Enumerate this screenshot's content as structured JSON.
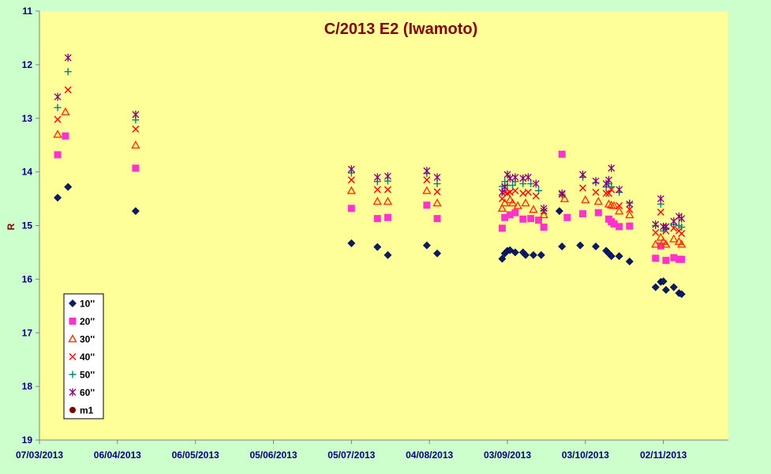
{
  "chart_data": {
    "type": "scatter",
    "title": "C/2013 E2 (Iwamoto)",
    "ylabel": "R",
    "xlabel": "",
    "x_type": "date",
    "xlim": [
      "2013-03-07",
      "2013-11-27"
    ],
    "x_ticks": [
      "07/03/2013",
      "06/04/2013",
      "06/05/2013",
      "05/06/2013",
      "05/07/2013",
      "04/08/2013",
      "03/09/2013",
      "03/10/2013",
      "02/11/2013"
    ],
    "ylim": [
      11,
      19
    ],
    "y_reversed": true,
    "y_ticks": [
      "11",
      "12",
      "13",
      "14",
      "15",
      "16",
      "17",
      "18",
      "19"
    ],
    "grid": false,
    "legend_position": "bottom-left",
    "colors": {
      "page_background": "#ccffcc",
      "plot_background": "#ffff99",
      "axis": "#808080",
      "title": "#800000",
      "tick_labels": "#000080"
    },
    "series": [
      {
        "name": "10''",
        "marker": "diamond",
        "color": "#0a1a6e",
        "points": [
          [
            "2013-03-14",
            14.48
          ],
          [
            "2013-03-18",
            14.28
          ],
          [
            "2013-04-13",
            14.73
          ],
          [
            "2013-07-05",
            15.33
          ],
          [
            "2013-07-15",
            15.4
          ],
          [
            "2013-07-19",
            15.55
          ],
          [
            "2013-08-03",
            15.37
          ],
          [
            "2013-08-07",
            15.52
          ],
          [
            "2013-09-01",
            15.62
          ],
          [
            "2013-09-02",
            15.52
          ],
          [
            "2013-09-03",
            15.47
          ],
          [
            "2013-09-04",
            15.46
          ],
          [
            "2013-09-06",
            15.5
          ],
          [
            "2013-09-09",
            15.5
          ],
          [
            "2013-09-10",
            15.55
          ],
          [
            "2013-09-13",
            15.55
          ],
          [
            "2013-09-16",
            15.55
          ],
          [
            "2013-09-23",
            14.73
          ],
          [
            "2013-09-24",
            15.39
          ],
          [
            "2013-10-01",
            15.37
          ],
          [
            "2013-10-07",
            15.39
          ],
          [
            "2013-10-11",
            15.47
          ],
          [
            "2013-10-12",
            15.52
          ],
          [
            "2013-10-13",
            15.57
          ],
          [
            "2013-10-16",
            15.57
          ],
          [
            "2013-10-20",
            15.67
          ],
          [
            "2013-10-30",
            16.15
          ],
          [
            "2013-11-01",
            16.05
          ],
          [
            "2013-11-02",
            16.04
          ],
          [
            "2013-11-03",
            16.2
          ],
          [
            "2013-11-06",
            16.15
          ],
          [
            "2013-11-08",
            16.26
          ],
          [
            "2013-11-09",
            16.28
          ]
        ]
      },
      {
        "name": "20''",
        "marker": "square",
        "color": "#ff33cc",
        "points": [
          [
            "2013-03-14",
            13.68
          ],
          [
            "2013-03-17",
            13.33
          ],
          [
            "2013-04-13",
            13.93
          ],
          [
            "2013-07-05",
            14.68
          ],
          [
            "2013-07-15",
            14.87
          ],
          [
            "2013-07-19",
            14.85
          ],
          [
            "2013-08-03",
            14.62
          ],
          [
            "2013-08-07",
            14.87
          ],
          [
            "2013-09-01",
            15.05
          ],
          [
            "2013-09-02",
            14.85
          ],
          [
            "2013-09-04",
            14.8
          ],
          [
            "2013-09-06",
            14.76
          ],
          [
            "2013-09-09",
            14.88
          ],
          [
            "2013-09-12",
            14.87
          ],
          [
            "2013-09-15",
            14.9
          ],
          [
            "2013-09-17",
            15.03
          ],
          [
            "2013-09-24",
            13.67
          ],
          [
            "2013-09-26",
            14.85
          ],
          [
            "2013-10-02",
            14.78
          ],
          [
            "2013-10-08",
            14.76
          ],
          [
            "2013-10-12",
            14.88
          ],
          [
            "2013-10-13",
            14.93
          ],
          [
            "2013-10-14",
            14.97
          ],
          [
            "2013-10-16",
            15.02
          ],
          [
            "2013-10-20",
            15.01
          ],
          [
            "2013-10-30",
            15.61
          ],
          [
            "2013-11-01",
            15.38
          ],
          [
            "2013-11-03",
            15.65
          ],
          [
            "2013-11-06",
            15.6
          ],
          [
            "2013-11-08",
            15.63
          ],
          [
            "2013-11-09",
            15.63
          ]
        ]
      },
      {
        "name": "30''",
        "marker": "triangle",
        "color": "#ff3300",
        "points": [
          [
            "2013-03-14",
            13.3
          ],
          [
            "2013-03-17",
            12.88
          ],
          [
            "2013-04-13",
            13.5
          ],
          [
            "2013-07-05",
            14.35
          ],
          [
            "2013-07-15",
            14.55
          ],
          [
            "2013-07-19",
            14.55
          ],
          [
            "2013-08-03",
            14.35
          ],
          [
            "2013-08-07",
            14.58
          ],
          [
            "2013-09-01",
            14.68
          ],
          [
            "2013-09-02",
            14.58
          ],
          [
            "2013-09-04",
            14.52
          ],
          [
            "2013-09-05",
            14.58
          ],
          [
            "2013-09-07",
            14.63
          ],
          [
            "2013-09-10",
            14.58
          ],
          [
            "2013-09-13",
            14.7
          ],
          [
            "2013-09-17",
            14.8
          ],
          [
            "2013-09-25",
            14.5
          ],
          [
            "2013-10-03",
            14.52
          ],
          [
            "2013-10-08",
            14.55
          ],
          [
            "2013-10-12",
            14.6
          ],
          [
            "2013-10-13",
            14.62
          ],
          [
            "2013-10-14",
            14.63
          ],
          [
            "2013-10-16",
            14.73
          ],
          [
            "2013-10-20",
            14.8
          ],
          [
            "2013-10-30",
            15.35
          ],
          [
            "2013-11-01",
            15.22
          ],
          [
            "2013-11-02",
            15.3
          ],
          [
            "2013-11-03",
            15.35
          ],
          [
            "2013-11-06",
            15.25
          ],
          [
            "2013-11-08",
            15.3
          ],
          [
            "2013-11-09",
            15.35
          ]
        ]
      },
      {
        "name": "40''",
        "marker": "x",
        "color": "#ff0000",
        "points": [
          [
            "2013-03-14",
            13.02
          ],
          [
            "2013-03-18",
            12.47
          ],
          [
            "2013-04-13",
            13.2
          ],
          [
            "2013-07-05",
            14.15
          ],
          [
            "2013-07-15",
            14.33
          ],
          [
            "2013-07-19",
            14.33
          ],
          [
            "2013-08-03",
            14.15
          ],
          [
            "2013-08-07",
            14.37
          ],
          [
            "2013-09-01",
            14.5
          ],
          [
            "2013-09-02",
            14.38
          ],
          [
            "2013-09-03",
            14.4
          ],
          [
            "2013-09-04",
            14.38
          ],
          [
            "2013-09-06",
            14.35
          ],
          [
            "2013-09-09",
            14.4
          ],
          [
            "2013-09-11",
            14.38
          ],
          [
            "2013-09-14",
            14.45
          ],
          [
            "2013-09-17",
            14.73
          ],
          [
            "2013-09-24",
            14.42
          ],
          [
            "2013-10-02",
            14.3
          ],
          [
            "2013-10-07",
            14.38
          ],
          [
            "2013-10-11",
            14.4
          ],
          [
            "2013-10-12",
            14.4
          ],
          [
            "2013-10-13",
            14.33
          ],
          [
            "2013-10-16",
            14.63
          ],
          [
            "2013-10-20",
            14.7
          ],
          [
            "2013-10-30",
            15.13
          ],
          [
            "2013-11-01",
            14.75
          ],
          [
            "2013-11-03",
            15.1
          ],
          [
            "2013-11-06",
            15.05
          ],
          [
            "2013-11-08",
            15.1
          ],
          [
            "2013-11-09",
            15.15
          ]
        ]
      },
      {
        "name": "50''",
        "marker": "plus",
        "color": "#008080",
        "points": [
          [
            "2013-03-14",
            12.8
          ],
          [
            "2013-03-18",
            12.13
          ],
          [
            "2013-04-13",
            13.03
          ],
          [
            "2013-07-05",
            14.02
          ],
          [
            "2013-07-15",
            14.18
          ],
          [
            "2013-07-19",
            14.17
          ],
          [
            "2013-08-03",
            14.03
          ],
          [
            "2013-08-07",
            14.22
          ],
          [
            "2013-09-01",
            14.27
          ],
          [
            "2013-09-02",
            14.18
          ],
          [
            "2013-09-03",
            14.25
          ],
          [
            "2013-09-05",
            14.25
          ],
          [
            "2013-09-06",
            14.18
          ],
          [
            "2013-09-09",
            14.22
          ],
          [
            "2013-09-12",
            14.22
          ],
          [
            "2013-09-15",
            14.35
          ],
          [
            "2013-09-17",
            14.72
          ],
          [
            "2013-09-24",
            14.42
          ],
          [
            "2013-10-02",
            14.1
          ],
          [
            "2013-10-07",
            14.2
          ],
          [
            "2013-10-11",
            14.28
          ],
          [
            "2013-10-12",
            14.22
          ],
          [
            "2013-10-13",
            14.28
          ],
          [
            "2013-10-16",
            14.38
          ],
          [
            "2013-10-20",
            14.58
          ],
          [
            "2013-10-30",
            15.0
          ],
          [
            "2013-11-01",
            14.6
          ],
          [
            "2013-11-02",
            15.1
          ],
          [
            "2013-11-03",
            15.05
          ],
          [
            "2013-11-06",
            14.98
          ],
          [
            "2013-11-08",
            15.0
          ],
          [
            "2013-11-09",
            15.03
          ]
        ]
      },
      {
        "name": "60''",
        "marker": "star",
        "color": "#800080",
        "points": [
          [
            "2013-03-14",
            12.6
          ],
          [
            "2013-03-18",
            11.87
          ],
          [
            "2013-04-13",
            12.93
          ],
          [
            "2013-07-05",
            13.95
          ],
          [
            "2013-07-15",
            14.1
          ],
          [
            "2013-07-19",
            14.08
          ],
          [
            "2013-08-03",
            13.98
          ],
          [
            "2013-08-07",
            14.1
          ],
          [
            "2013-09-01",
            14.38
          ],
          [
            "2013-09-02",
            14.28
          ],
          [
            "2013-09-03",
            14.05
          ],
          [
            "2013-09-04",
            14.12
          ],
          [
            "2013-09-06",
            14.1
          ],
          [
            "2013-09-09",
            14.12
          ],
          [
            "2013-09-11",
            14.1
          ],
          [
            "2013-09-14",
            14.22
          ],
          [
            "2013-09-17",
            14.68
          ],
          [
            "2013-09-24",
            14.4
          ],
          [
            "2013-10-02",
            14.05
          ],
          [
            "2013-10-07",
            14.17
          ],
          [
            "2013-10-11",
            14.22
          ],
          [
            "2013-10-12",
            14.15
          ],
          [
            "2013-10-13",
            13.93
          ],
          [
            "2013-10-16",
            14.33
          ],
          [
            "2013-10-20",
            14.6
          ],
          [
            "2013-10-30",
            14.98
          ],
          [
            "2013-11-01",
            14.5
          ],
          [
            "2013-11-02",
            15.02
          ],
          [
            "2013-11-03",
            15.02
          ],
          [
            "2013-11-06",
            14.92
          ],
          [
            "2013-11-08",
            14.83
          ],
          [
            "2013-11-09",
            14.87
          ]
        ]
      },
      {
        "name": "m1",
        "marker": "circle",
        "color": "#800000",
        "points": []
      }
    ]
  }
}
